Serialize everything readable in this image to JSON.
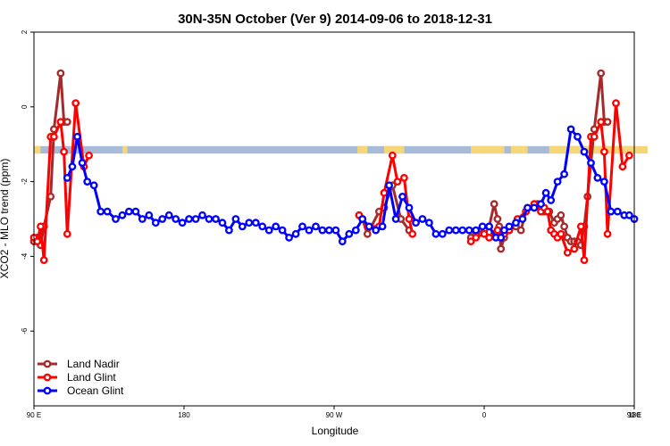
{
  "chart_data": {
    "type": "line",
    "title": "30N-35N October (Ver 9)   2014-09-06 to 2018-12-31",
    "xlabel": "Longitude",
    "ylabel": "XCO2 - MLO trend (ppm)",
    "xlim": [
      90,
      450
    ],
    "ylim": [
      -8.0,
      2.0
    ],
    "x_ticks": [
      {
        "value": 90,
        "label": "90 E"
      },
      {
        "value": 180,
        "label": "180"
      },
      {
        "value": 270,
        "label": "90 W"
      },
      {
        "value": 360,
        "label": "0"
      },
      {
        "value": 450,
        "label": "90 E"
      },
      {
        "value": 540,
        "label": "180"
      }
    ],
    "y_ticks": [
      {
        "value": 2,
        "label": "2"
      },
      {
        "value": 0,
        "label": "0"
      },
      {
        "value": -2,
        "label": "-2"
      },
      {
        "value": -4,
        "label": "-4"
      },
      {
        "value": -6,
        "label": "-6"
      }
    ],
    "surface_strip": {
      "y_range": [
        -1.25,
        -1.05
      ],
      "land_color": "#f5d77a",
      "ocean_color": "#a7bbd9",
      "land_segments": [
        [
          90,
          94
        ],
        [
          143,
          146
        ],
        [
          284,
          290
        ],
        [
          300,
          312
        ],
        [
          352,
          372
        ],
        [
          376,
          386
        ],
        [
          399,
          458
        ]
      ]
    },
    "legend": {
      "position": "bottom-left",
      "entries": [
        {
          "label": "Land Nadir",
          "color": "#a52a2a"
        },
        {
          "label": "Land Glint",
          "color": "#ff0000"
        },
        {
          "label": "Ocean Glint",
          "color": "#0000ff"
        }
      ]
    },
    "series": [
      {
        "name": "Land Nadir",
        "color": "#a52a2a",
        "segments": [
          [
            [
              90,
              -3.6
            ],
            [
              92,
              -3.5
            ],
            [
              94,
              -3.7
            ],
            [
              96,
              -3.2
            ],
            [
              100,
              -2.4
            ],
            [
              102,
              -0.6
            ],
            [
              106,
              0.9
            ],
            [
              108,
              -0.4
            ],
            [
              110,
              -0.4
            ]
          ],
          [
            [
              285,
              -2.9
            ],
            [
              287,
              -3.0
            ],
            [
              290,
              -3.4
            ],
            [
              297,
              -2.8
            ],
            [
              300,
              -2.7
            ],
            [
              305,
              -2.1
            ],
            [
              310,
              -3.0
            ],
            [
              315,
              -3.3
            ]
          ],
          [
            [
              352,
              -3.5
            ],
            [
              355,
              -3.4
            ],
            [
              360,
              -3.3
            ],
            [
              363,
              -3.2
            ],
            [
              366,
              -2.6
            ],
            [
              368,
              -3.0
            ],
            [
              369,
              -3.2
            ],
            [
              370,
              -3.8
            ],
            [
              372,
              -3.5
            ],
            [
              375,
              -3.3
            ],
            [
              379,
              -3.2
            ],
            [
              382,
              -3.3
            ],
            [
              385,
              -2.8
            ],
            [
              390,
              -2.7
            ],
            [
              392,
              -2.6
            ],
            [
              394,
              -2.7
            ],
            [
              396,
              -2.8
            ],
            [
              399,
              -2.8
            ],
            [
              402,
              -3.1
            ],
            [
              404,
              -3.0
            ],
            [
              406,
              -2.9
            ],
            [
              408,
              -3.2
            ],
            [
              410,
              -3.5
            ],
            [
              412,
              -3.6
            ],
            [
              414,
              -3.6
            ],
            [
              416,
              -3.6
            ],
            [
              418,
              -3.7
            ],
            [
              420,
              -3.2
            ],
            [
              422,
              -2.4
            ],
            [
              426,
              -0.6
            ],
            [
              430,
              0.9
            ],
            [
              432,
              -0.4
            ],
            [
              434,
              -0.4
            ]
          ]
        ]
      },
      {
        "name": "Land Glint",
        "color": "#ff0000",
        "segments": [
          [
            [
              90,
              -3.5
            ],
            [
              92,
              -3.6
            ],
            [
              94,
              -3.2
            ],
            [
              96,
              -4.1
            ],
            [
              100,
              -0.8
            ],
            [
              102,
              -0.8
            ],
            [
              106,
              -0.4
            ],
            [
              108,
              -1.2
            ],
            [
              110,
              -3.4
            ],
            [
              115,
              0.1
            ],
            [
              120,
              -1.6
            ],
            [
              123,
              -1.3
            ]
          ],
          [
            [
              285,
              -2.9
            ],
            [
              287,
              -3.0
            ],
            [
              290,
              -3.2
            ],
            [
              297,
              -3.2
            ],
            [
              300,
              -2.3
            ],
            [
              305,
              -1.3
            ],
            [
              308,
              -2.0
            ],
            [
              312,
              -1.9
            ],
            [
              315,
              -3.0
            ],
            [
              317,
              -3.4
            ]
          ],
          [
            [
              352,
              -3.6
            ],
            [
              355,
              -3.5
            ],
            [
              360,
              -3.4
            ],
            [
              363,
              -3.5
            ],
            [
              366,
              -3.4
            ],
            [
              368,
              -3.3
            ],
            [
              370,
              -3.5
            ],
            [
              372,
              -3.4
            ],
            [
              375,
              -3.3
            ],
            [
              380,
              -3.0
            ],
            [
              385,
              -2.8
            ],
            [
              390,
              -2.6
            ],
            [
              394,
              -2.8
            ],
            [
              396,
              -2.7
            ],
            [
              398,
              -2.8
            ],
            [
              400,
              -3.3
            ],
            [
              402,
              -3.4
            ],
            [
              404,
              -3.5
            ],
            [
              406,
              -3.4
            ],
            [
              410,
              -3.9
            ],
            [
              414,
              -3.8
            ],
            [
              418,
              -3.2
            ],
            [
              420,
              -4.1
            ],
            [
              424,
              -0.8
            ],
            [
              426,
              -0.8
            ],
            [
              430,
              -0.4
            ],
            [
              432,
              -1.2
            ],
            [
              434,
              -3.4
            ],
            [
              439,
              0.1
            ],
            [
              443,
              -1.6
            ],
            [
              447,
              -1.3
            ]
          ]
        ]
      },
      {
        "name": "Ocean Glint",
        "color": "#0000ff",
        "segments": [
          [
            [
              110,
              -1.9
            ],
            [
              113,
              -1.6
            ],
            [
              116,
              -0.8
            ],
            [
              119,
              -1.5
            ],
            [
              122,
              -2.0
            ],
            [
              126,
              -2.1
            ],
            [
              130,
              -2.8
            ],
            [
              134,
              -2.8
            ],
            [
              139,
              -3.0
            ],
            [
              143,
              -2.9
            ],
            [
              147,
              -2.8
            ],
            [
              151,
              -2.8
            ],
            [
              155,
              -3.0
            ],
            [
              159,
              -2.9
            ],
            [
              163,
              -3.1
            ],
            [
              167,
              -3.0
            ],
            [
              171,
              -2.9
            ],
            [
              175,
              -3.0
            ],
            [
              179,
              -3.1
            ],
            [
              183,
              -3.0
            ],
            [
              187,
              -3.0
            ],
            [
              191,
              -2.9
            ],
            [
              195,
              -3.0
            ],
            [
              199,
              -3.0
            ],
            [
              203,
              -3.1
            ],
            [
              207,
              -3.3
            ],
            [
              211,
              -3.0
            ],
            [
              215,
              -3.2
            ],
            [
              219,
              -3.1
            ],
            [
              223,
              -3.1
            ],
            [
              227,
              -3.2
            ],
            [
              231,
              -3.3
            ],
            [
              235,
              -3.2
            ],
            [
              239,
              -3.3
            ],
            [
              243,
              -3.5
            ],
            [
              247,
              -3.4
            ],
            [
              251,
              -3.2
            ],
            [
              255,
              -3.3
            ],
            [
              259,
              -3.2
            ],
            [
              263,
              -3.3
            ],
            [
              267,
              -3.3
            ],
            [
              271,
              -3.3
            ],
            [
              275,
              -3.6
            ],
            [
              279,
              -3.4
            ],
            [
              283,
              -3.3
            ],
            [
              287,
              -3.0
            ],
            [
              291,
              -3.2
            ],
            [
              295,
              -3.3
            ],
            [
              299,
              -3.2
            ],
            [
              303,
              -2.1
            ],
            [
              307,
              -3.0
            ],
            [
              311,
              -2.4
            ],
            [
              315,
              -2.7
            ],
            [
              319,
              -3.1
            ],
            [
              323,
              -3.0
            ],
            [
              327,
              -3.1
            ],
            [
              331,
              -3.4
            ],
            [
              335,
              -3.4
            ],
            [
              339,
              -3.3
            ],
            [
              343,
              -3.3
            ],
            [
              347,
              -3.3
            ],
            [
              351,
              -3.3
            ],
            [
              355,
              -3.3
            ],
            [
              359,
              -3.2
            ],
            [
              363,
              -3.2
            ],
            [
              367,
              -3.5
            ],
            [
              370,
              -3.5
            ],
            [
              372,
              -3.3
            ],
            [
              375,
              -3.2
            ],
            [
              379,
              -3.1
            ],
            [
              383,
              -3.0
            ],
            [
              386,
              -2.7
            ],
            [
              390,
              -2.7
            ],
            [
              394,
              -2.6
            ],
            [
              397,
              -2.3
            ],
            [
              400,
              -2.5
            ],
            [
              404,
              -2.0
            ],
            [
              408,
              -1.8
            ],
            [
              412,
              -0.6
            ],
            [
              416,
              -0.8
            ],
            [
              420,
              -1.2
            ],
            [
              424,
              -1.5
            ],
            [
              428,
              -1.9
            ],
            [
              432,
              -2.0
            ],
            [
              436,
              -2.8
            ],
            [
              440,
              -2.8
            ],
            [
              444,
              -2.9
            ],
            [
              447,
              -2.9
            ],
            [
              450,
              -3.0
            ]
          ]
        ]
      }
    ]
  }
}
